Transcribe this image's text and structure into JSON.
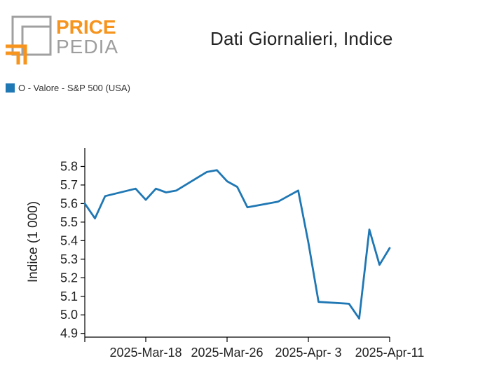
{
  "logo": {
    "line1": "PRICE",
    "line2": "PEDIA",
    "accent_color": "#f7941d",
    "gray_color": "#9e9e9e"
  },
  "chart_data": {
    "type": "line",
    "title": "Dati Giornalieri, Indice",
    "xlabel": "",
    "ylabel": "Indice (1 000)",
    "ylim": [
      4.88,
      5.9
    ],
    "yticks": [
      4.9,
      5.0,
      5.1,
      5.2,
      5.3,
      5.4,
      5.5,
      5.6,
      5.7,
      5.8
    ],
    "ytick_labels": [
      "4.9",
      "5.0",
      "5.1",
      "5.2",
      "5.3",
      "5.4",
      "5.5",
      "5.6",
      "5.7",
      "5.8"
    ],
    "xlim": [
      0,
      30
    ],
    "xticks": [
      6,
      14,
      22,
      30
    ],
    "xtick_labels": [
      "2025-Mar-18",
      "2025-Mar-26",
      "2025-Apr- 3",
      "2025-Apr-11"
    ],
    "series": [
      {
        "name": "O - Valore - S&P 500 (USA)",
        "color": "#1f77b4",
        "x": [
          0,
          1,
          2,
          5,
          6,
          7,
          8,
          9,
          12,
          13,
          14,
          15,
          16,
          19,
          20,
          21,
          22,
          23,
          26,
          27,
          28,
          29,
          30
        ],
        "values": [
          5.6,
          5.52,
          5.64,
          5.68,
          5.62,
          5.68,
          5.66,
          5.67,
          5.77,
          5.78,
          5.72,
          5.69,
          5.58,
          5.61,
          5.64,
          5.67,
          5.39,
          5.07,
          5.06,
          4.98,
          5.46,
          5.27,
          5.36
        ]
      }
    ]
  }
}
